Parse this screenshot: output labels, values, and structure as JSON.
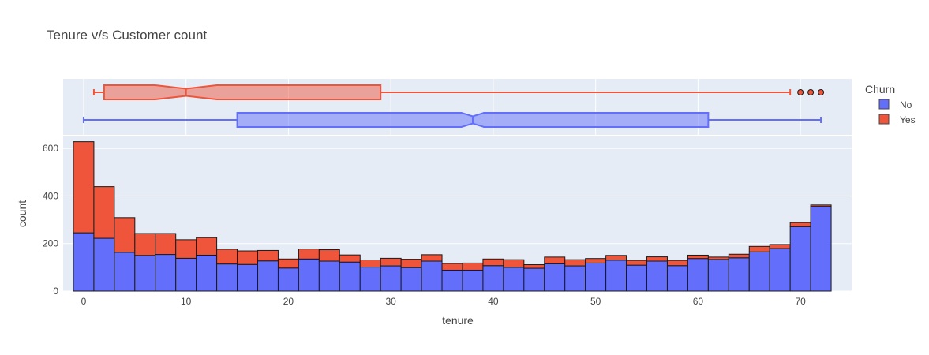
{
  "chart_data": {
    "type": "bar",
    "title": "Tenure v/s Customer count",
    "xlabel": "tenure",
    "ylabel": "count",
    "xlim": [
      -2,
      75
    ],
    "ylim": [
      0,
      650
    ],
    "x_ticks": [
      "0",
      "10",
      "20",
      "30",
      "40",
      "50",
      "60",
      "70"
    ],
    "y_ticks": [
      "0",
      "200",
      "400",
      "600"
    ],
    "grid": true,
    "barmode": "stack",
    "bin_size": 2,
    "bin_starts": [
      -1,
      1,
      3,
      5,
      7,
      9,
      11,
      13,
      15,
      17,
      19,
      21,
      23,
      25,
      27,
      29,
      31,
      33,
      35,
      37,
      39,
      41,
      43,
      45,
      47,
      49,
      51,
      53,
      55,
      57,
      59,
      61,
      63,
      65,
      67,
      69,
      71
    ],
    "legend": {
      "title": "Churn",
      "position": "top-right"
    },
    "series": [
      {
        "name": "No",
        "color": "#636efa",
        "values": [
          245,
          222,
          163,
          150,
          154,
          138,
          151,
          114,
          112,
          127,
          97,
          135,
          126,
          122,
          101,
          106,
          99,
          126,
          88,
          88,
          107,
          100,
          96,
          115,
          106,
          118,
          130,
          109,
          126,
          107,
          137,
          133,
          140,
          165,
          179,
          271,
          356
        ]
      },
      {
        "name": "Yes",
        "color": "#ef553b",
        "values": [
          383,
          217,
          146,
          92,
          88,
          78,
          74,
          62,
          57,
          44,
          38,
          42,
          48,
          30,
          30,
          32,
          35,
          27,
          28,
          30,
          28,
          32,
          15,
          28,
          26,
          19,
          20,
          20,
          18,
          22,
          14,
          10,
          15,
          23,
          17,
          17,
          6
        ]
      }
    ],
    "boxplots": [
      {
        "name": "Yes",
        "color": "#ef553b",
        "min": 1,
        "q1": 2,
        "median": 10,
        "q3": 29,
        "max": 69,
        "notch": [
          7,
          13
        ],
        "outliers": [
          70,
          71,
          72
        ]
      },
      {
        "name": "No",
        "color": "#636efa",
        "min": 0,
        "q1": 15,
        "median": 38,
        "q3": 61,
        "max": 72,
        "notch": [
          36.9,
          39.1
        ],
        "outliers": []
      }
    ]
  }
}
